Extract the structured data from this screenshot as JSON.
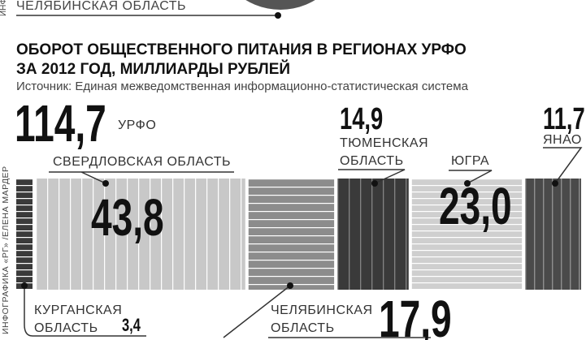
{
  "fragment_label": "ЧЕЛЯБИНСКАЯ ОБЛАСТЬ",
  "credit_fragment": "ИНФ",
  "credit": "ИНФОГРАФИКА «РГ» /ЕЛЕНА МАРДЕР",
  "chart_data": {
    "type": "proportional-bar",
    "title": [
      "ОБОРОТ ОБЩЕСТВЕННОГО ПИТАНИЯ  В РЕГИОНАХ УРФО",
      "ЗА 2012 ГОД, МИЛЛИАРДЫ РУБЛЕЙ"
    ],
    "subtitle": "Источник: Единая межведомственная информационно-статистическая система",
    "total": {
      "value": 114.7,
      "label": "114,7",
      "name": "УРФО"
    },
    "categories": [
      "КУРГАНСКАЯ ОБЛАСТЬ",
      "СВЕРДЛОВСКАЯ ОБЛАСТЬ",
      "ЧЕЛЯБИНСКАЯ ОБЛАСТЬ",
      "ТЮМЕНСКАЯ ОБЛАСТЬ",
      "ЮГРА",
      "ЯНАО"
    ],
    "values": [
      3.4,
      43.8,
      17.9,
      14.9,
      23.0,
      11.7
    ],
    "value_labels": [
      "3,4",
      "43,8",
      "17,9",
      "14,9",
      "23,0",
      "11,7"
    ],
    "colors": [
      "#3a3a3a",
      "#c8c8c8",
      "#8c8c8c",
      "#3a3a3a",
      "#cfcfcf",
      "#4a4a4a"
    ]
  }
}
